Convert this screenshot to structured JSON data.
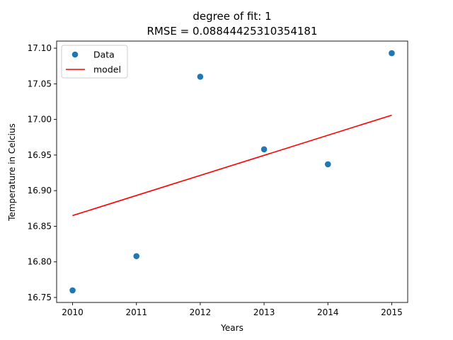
{
  "chart_data": {
    "type": "scatter",
    "title": "degree of fit: 1",
    "subtitle": "RMSE = 0.08844425310354181",
    "xlabel": "Years",
    "ylabel": "Temperature in Celcius",
    "xlim": [
      2009.75,
      2015.25
    ],
    "ylim": [
      16.743,
      17.11
    ],
    "x_ticks": [
      2010,
      2011,
      2012,
      2013,
      2014,
      2015
    ],
    "x_tick_labels": [
      "2010",
      "2011",
      "2012",
      "2013",
      "2014",
      "2015"
    ],
    "y_ticks": [
      16.75,
      16.8,
      16.85,
      16.9,
      16.95,
      17.0,
      17.05,
      17.1
    ],
    "y_tick_labels": [
      "16.75",
      "16.80",
      "16.85",
      "16.90",
      "16.95",
      "17.00",
      "17.05",
      "17.10"
    ],
    "grid": false,
    "legend_position": "upper-left",
    "series": [
      {
        "name": "Data",
        "kind": "scatter",
        "color": "#1f77b4",
        "x": [
          2010,
          2011,
          2012,
          2013,
          2014,
          2015
        ],
        "y": [
          16.76,
          16.808,
          17.06,
          16.958,
          16.937,
          17.093
        ]
      },
      {
        "name": "model",
        "kind": "line",
        "color": "#ff0000",
        "x": [
          2010,
          2015
        ],
        "y": [
          16.865,
          17.006
        ]
      }
    ]
  }
}
